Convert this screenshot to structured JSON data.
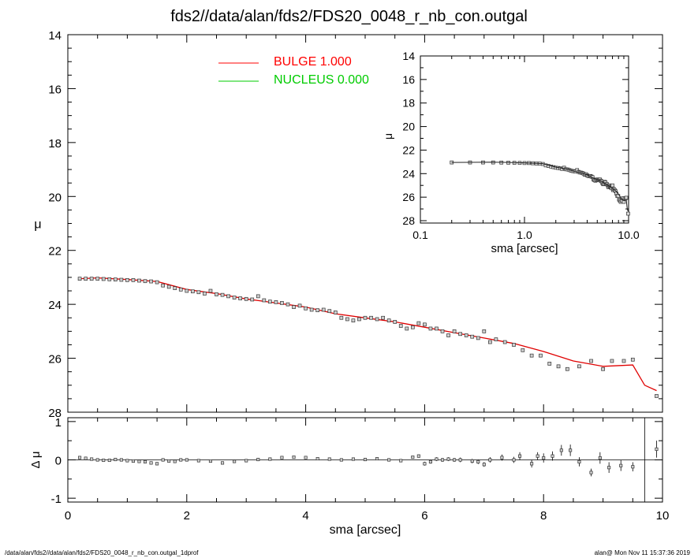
{
  "title": "fds2//data/alan/fds2/FDS20_0048_r_nb_con.outgal",
  "footer": {
    "left": "/data/alan/fds2//data/alan/fds2/FDS20_0048_r_nb_con.outgal_1dprof",
    "right": "alan@  Mon Nov 11 15:37:36 2019"
  },
  "legend": [
    {
      "name": "BULGE  1.000",
      "color": "#ff0000"
    },
    {
      "name": "NUCLEUS  0.000",
      "color": "#00cc00"
    }
  ],
  "chart_data": [
    {
      "id": "main",
      "type": "scatter",
      "xlabel": "sma [arcsec]",
      "ylabel": "μ",
      "xlim": [
        0,
        10
      ],
      "ylim": [
        28,
        14
      ],
      "yticks": [
        14,
        16,
        18,
        20,
        22,
        24,
        26,
        28
      ],
      "xticks": [
        0,
        2,
        4,
        6,
        8,
        10
      ],
      "points": {
        "x": [
          0.2,
          0.3,
          0.4,
          0.5,
          0.6,
          0.7,
          0.8,
          0.9,
          1.0,
          1.1,
          1.2,
          1.3,
          1.4,
          1.5,
          1.6,
          1.7,
          1.8,
          1.9,
          2.0,
          2.1,
          2.2,
          2.3,
          2.4,
          2.5,
          2.6,
          2.7,
          2.8,
          2.9,
          3.0,
          3.1,
          3.2,
          3.3,
          3.4,
          3.5,
          3.6,
          3.7,
          3.8,
          3.9,
          4.0,
          4.1,
          4.2,
          4.3,
          4.4,
          4.5,
          4.6,
          4.7,
          4.8,
          4.9,
          5.0,
          5.1,
          5.2,
          5.3,
          5.4,
          5.5,
          5.6,
          5.7,
          5.8,
          5.9,
          6.0,
          6.1,
          6.2,
          6.3,
          6.4,
          6.5,
          6.6,
          6.7,
          6.8,
          6.9,
          7.0,
          7.1,
          7.2,
          7.35,
          7.5,
          7.65,
          7.8,
          7.95,
          8.1,
          8.25,
          8.4,
          8.6,
          8.8,
          9.0,
          9.15,
          9.35,
          9.5,
          9.9
        ],
        "y": [
          23.05,
          23.05,
          23.05,
          23.05,
          23.06,
          23.07,
          23.08,
          23.09,
          23.1,
          23.1,
          23.12,
          23.14,
          23.15,
          23.18,
          23.3,
          23.35,
          23.4,
          23.45,
          23.5,
          23.52,
          23.55,
          23.6,
          23.5,
          23.63,
          23.65,
          23.7,
          23.75,
          23.78,
          23.8,
          23.82,
          23.7,
          23.85,
          23.9,
          23.92,
          23.95,
          24.0,
          24.1,
          24.05,
          24.15,
          24.2,
          24.22,
          24.2,
          24.25,
          24.3,
          24.5,
          24.55,
          24.6,
          24.55,
          24.5,
          24.5,
          24.55,
          24.5,
          24.6,
          24.65,
          24.8,
          24.9,
          24.85,
          24.7,
          24.75,
          24.9,
          24.9,
          25.0,
          25.15,
          25.0,
          25.1,
          25.15,
          25.2,
          25.25,
          25.0,
          25.4,
          25.3,
          25.4,
          25.5,
          25.7,
          25.9,
          25.9,
          26.2,
          26.3,
          26.4,
          26.3,
          26.1,
          26.4,
          26.1,
          26.1,
          26.05,
          27.4
        ]
      },
      "series": [
        {
          "name": "BULGE  1.000",
          "x": [
            0.2,
            0.5,
            1.0,
            1.5,
            2.0,
            2.5,
            3.0,
            3.5,
            4.0,
            4.5,
            5.0,
            5.5,
            6.0,
            6.5,
            7.0,
            7.5,
            8.0,
            8.5,
            9.0,
            9.5,
            9.7,
            9.9
          ],
          "y": [
            23.05,
            23.02,
            23.08,
            23.15,
            23.45,
            23.6,
            23.8,
            23.95,
            24.1,
            24.35,
            24.5,
            24.65,
            24.85,
            25.05,
            25.25,
            25.45,
            25.75,
            26.1,
            26.3,
            26.25,
            27.0,
            27.2
          ]
        }
      ]
    },
    {
      "id": "residual",
      "type": "scatter",
      "xlabel": "sma [arcsec]",
      "ylabel": "Δ μ",
      "xlim": [
        0,
        10
      ],
      "ylim": [
        -1.1,
        1.1
      ],
      "yticks": [
        -1,
        0,
        1
      ],
      "xticks": [
        0,
        2,
        4,
        6,
        8,
        10
      ],
      "points": {
        "x": [
          0.2,
          0.3,
          0.4,
          0.5,
          0.6,
          0.7,
          0.8,
          0.9,
          1.0,
          1.1,
          1.2,
          1.3,
          1.4,
          1.5,
          1.6,
          1.7,
          1.8,
          1.9,
          2.0,
          2.2,
          2.4,
          2.6,
          2.8,
          3.0,
          3.2,
          3.4,
          3.6,
          3.8,
          4.0,
          4.2,
          4.4,
          4.6,
          4.8,
          5.0,
          5.2,
          5.4,
          5.6,
          5.8,
          5.9,
          6.0,
          6.1,
          6.2,
          6.3,
          6.4,
          6.5,
          6.6,
          6.8,
          6.9,
          7.0,
          7.1,
          7.3,
          7.5,
          7.6,
          7.8,
          7.9,
          8.0,
          8.15,
          8.3,
          8.45,
          8.6,
          8.8,
          8.95,
          9.1,
          9.3,
          9.5,
          9.9
        ],
        "y": [
          0.06,
          0.04,
          0.02,
          0.0,
          -0.01,
          -0.01,
          0.01,
          0.0,
          -0.02,
          -0.03,
          -0.04,
          -0.05,
          -0.08,
          -0.1,
          0.0,
          -0.03,
          -0.04,
          0.0,
          0.0,
          -0.02,
          -0.03,
          -0.08,
          -0.04,
          -0.02,
          0.01,
          0.02,
          0.06,
          0.07,
          0.06,
          0.03,
          0.02,
          0.0,
          0.02,
          0.01,
          0.03,
          0.0,
          -0.02,
          0.07,
          0.1,
          -0.1,
          -0.05,
          0.02,
          0.0,
          0.02,
          0.0,
          0.0,
          -0.03,
          -0.05,
          -0.12,
          0.0,
          0.06,
          0.0,
          0.1,
          -0.1,
          0.1,
          0.05,
          0.1,
          0.25,
          0.25,
          -0.05,
          -0.33,
          0.05,
          -0.2,
          -0.15,
          -0.18,
          0.28
        ],
        "err": [
          0.01,
          0.01,
          0.01,
          0.01,
          0.01,
          0.01,
          0.01,
          0.01,
          0.01,
          0.01,
          0.01,
          0.01,
          0.01,
          0.01,
          0.02,
          0.02,
          0.02,
          0.02,
          0.02,
          0.02,
          0.02,
          0.02,
          0.02,
          0.02,
          0.02,
          0.03,
          0.03,
          0.03,
          0.03,
          0.03,
          0.03,
          0.03,
          0.03,
          0.03,
          0.03,
          0.04,
          0.04,
          0.04,
          0.04,
          0.05,
          0.05,
          0.05,
          0.05,
          0.05,
          0.05,
          0.06,
          0.06,
          0.06,
          0.06,
          0.07,
          0.08,
          0.08,
          0.1,
          0.1,
          0.1,
          0.12,
          0.12,
          0.14,
          0.15,
          0.12,
          0.1,
          0.15,
          0.14,
          0.14,
          0.12,
          0.22
        ]
      }
    },
    {
      "id": "inset",
      "type": "scatter",
      "xlabel": "sma [arcsec]",
      "ylabel": "μ",
      "xscale": "log",
      "xlim": [
        0.1,
        10
      ],
      "ylim": [
        28.2,
        14
      ],
      "yticks": [
        14,
        16,
        18,
        20,
        22,
        24,
        26,
        28
      ],
      "xticks": [
        0.1,
        1.0,
        10.0
      ],
      "xticklabels": [
        "0.1",
        "1.0",
        "10.0"
      ]
    }
  ]
}
